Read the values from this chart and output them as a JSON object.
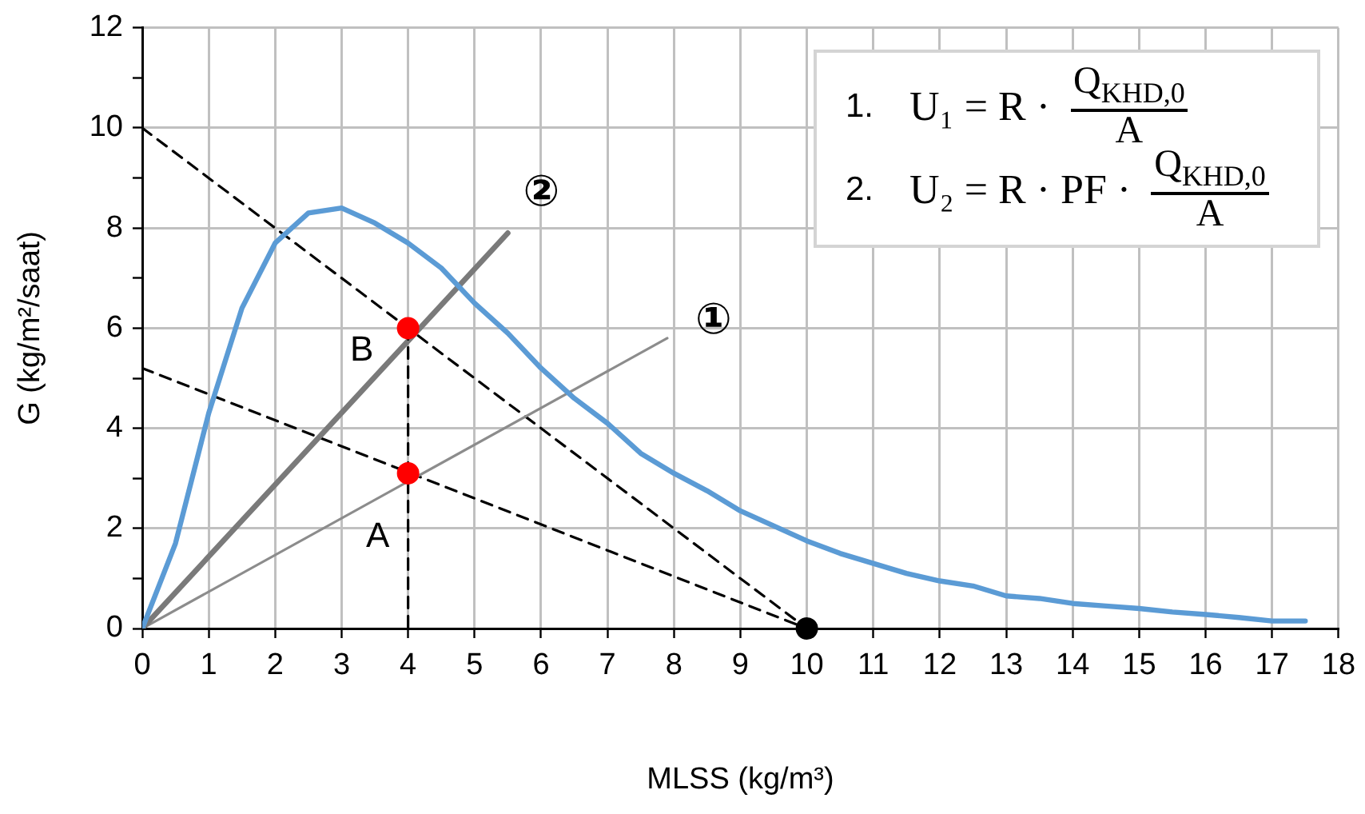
{
  "chart_data": {
    "type": "line",
    "xlabel": "MLSS (kg/m³)",
    "ylabel": "G (kg/m²/saat)",
    "xlim": [
      0,
      18
    ],
    "xticks": [
      0,
      1,
      2,
      3,
      4,
      5,
      6,
      7,
      8,
      9,
      10,
      11,
      12,
      13,
      14,
      15,
      16,
      17,
      18
    ],
    "ylim": [
      0,
      12
    ],
    "yticks": [
      0,
      {
        "value": 1,
        "label": null
      },
      2,
      {
        "value": 3,
        "label": null
      },
      4,
      {
        "value": 5,
        "label": null
      },
      6,
      {
        "value": 7,
        "label": null
      },
      8,
      {
        "value": 9,
        "label": null
      },
      10,
      {
        "value": 11,
        "label": null
      },
      12
    ],
    "grid": true,
    "annotations": [
      "1. U₁ = R · Q$_{KHD,0}$ A",
      "2. U₂ = R · PF · Q$_{KHD,0}$ A",
      {
        "text": "A",
        "x": 4,
        "y": 3.1
      },
      {
        "text": "B",
        "x": 4,
        "y": 6
      }
    ],
    "series": [
      {
        "color": "#000000",
        "line_style": "dashed",
        "x": [
          0,
          10
        ],
        "values": [
          10,
          0
        ]
      },
      {
        "color": "#000000",
        "line_style": "dashed",
        "x": [
          0,
          10
        ],
        "values": [
          5.2,
          0
        ]
      },
      {
        "name": "①",
        "color": "#8c8c8c",
        "x": [
          0,
          7.9
        ],
        "values": [
          0,
          5.8
        ]
      },
      {
        "name": "②",
        "color": "#7a7a7a",
        "x": [
          0,
          5.5
        ],
        "values": [
          0,
          7.9
        ]
      },
      {
        "color": "#5b9bd5",
        "x": [
          0,
          0.5,
          1,
          1.5,
          2,
          2.5,
          3,
          3.5,
          4,
          4.5,
          5,
          5.5,
          6,
          6.5,
          7,
          7.5,
          8,
          8.5,
          9,
          9.5,
          10,
          10.5,
          11,
          11.5,
          12,
          12.5,
          13,
          13.5,
          14,
          14.5,
          15,
          15.5,
          16,
          16.5,
          17,
          17.5
        ],
        "values": [
          0,
          1.7,
          4.3,
          6.4,
          7.7,
          8.3,
          8.4,
          8.1,
          7.7,
          7.2,
          6.5,
          5.9,
          5.2,
          4.6,
          4.1,
          3.5,
          3.1,
          2.75,
          2.35,
          2.05,
          1.75,
          1.5,
          1.3,
          1.1,
          0.95,
          0.85,
          0.65,
          0.6,
          0.5,
          0.45,
          0.4,
          0.33,
          0.28,
          0.22,
          0.15,
          0.15
        ]
      },
      {
        "color": "#000000",
        "line_style": "dashed",
        "x": [
          4,
          4
        ],
        "values": [
          6,
          0
        ]
      },
      {
        "type": "scatter",
        "marker": "circle",
        "colors": [
          "#ff0000",
          "#ff0000"
        ],
        "x": [
          4,
          4
        ],
        "values": [
          6,
          3.1
        ]
      },
      {
        "type": "scatter",
        "marker": "circle",
        "color": "#000000",
        "x": [
          10
        ],
        "values": [
          0
        ]
      }
    ]
  }
}
